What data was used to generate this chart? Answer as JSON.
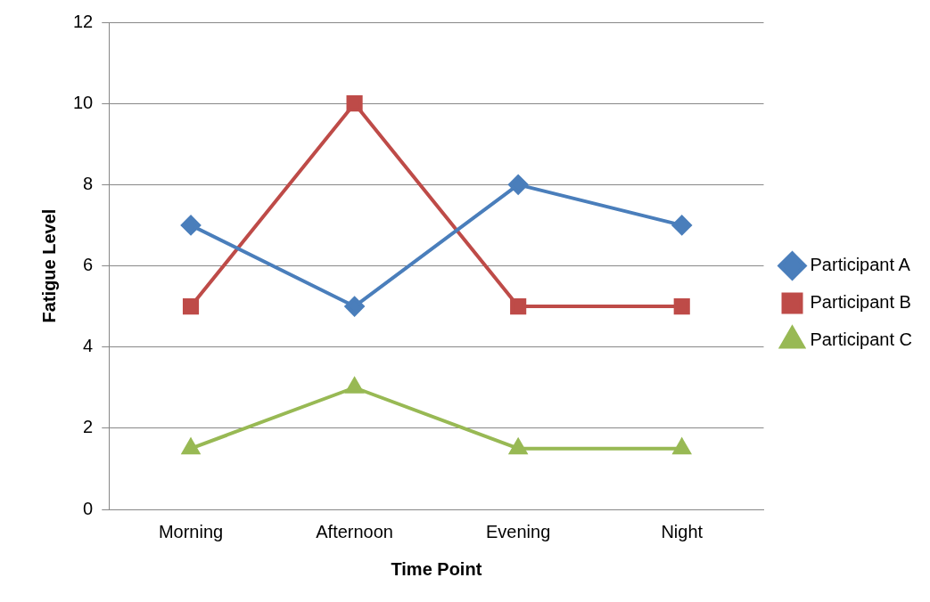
{
  "chart_data": {
    "type": "line",
    "xlabel": "Time Point",
    "ylabel": "Fatigue Level",
    "categories": [
      "Morning",
      "Afternoon",
      "Evening",
      "Night"
    ],
    "series": [
      {
        "name": "Participant A",
        "color": "#4a7ebb",
        "marker": "diamond",
        "values": [
          7,
          5,
          8,
          7
        ]
      },
      {
        "name": "Participant B",
        "color": "#be4b48",
        "marker": "square",
        "values": [
          5,
          10,
          5,
          5
        ]
      },
      {
        "name": "Participant C",
        "color": "#98b954",
        "marker": "triangle",
        "values": [
          1.5,
          3,
          1.5,
          1.5
        ]
      }
    ],
    "ylim": [
      0,
      12
    ],
    "yticks": [
      0,
      2,
      4,
      6,
      8,
      10,
      12
    ],
    "grid": "y",
    "legend": "right",
    "line_style": "solid"
  }
}
